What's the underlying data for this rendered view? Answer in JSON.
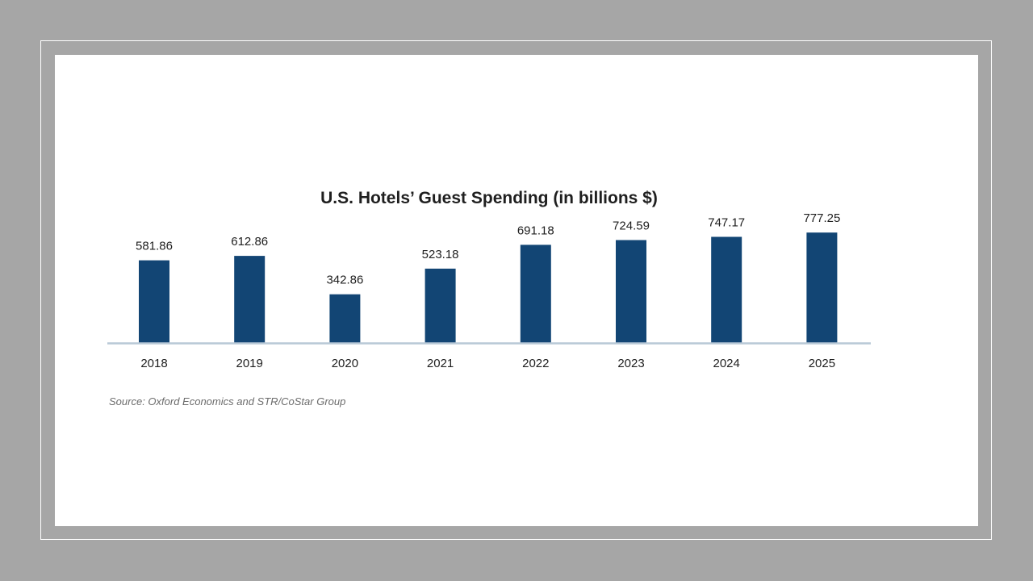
{
  "chart_data": {
    "type": "bar",
    "title": "U.S. Hotels’ Guest Spending (in billions $)",
    "categories": [
      "2018",
      "2019",
      "2020",
      "2021",
      "2022",
      "2023",
      "2024",
      "2025"
    ],
    "values": [
      581.86,
      612.86,
      342.86,
      523.18,
      691.18,
      724.59,
      747.17,
      777.25
    ],
    "value_labels": [
      "581.86",
      "612.86",
      "342.86",
      "523.18",
      "691.18",
      "724.59",
      "747.17",
      "777.25"
    ],
    "xlabel": "",
    "ylabel": "",
    "ylim": [
      0,
      800
    ],
    "grid": false,
    "legend": "none",
    "source": "Source: Oxford Economics and STR/CoStar Group"
  },
  "colors": {
    "bar": "#124574",
    "baseline": "#b8c8d6",
    "background": "#a6a6a6",
    "card": "#ffffff"
  }
}
